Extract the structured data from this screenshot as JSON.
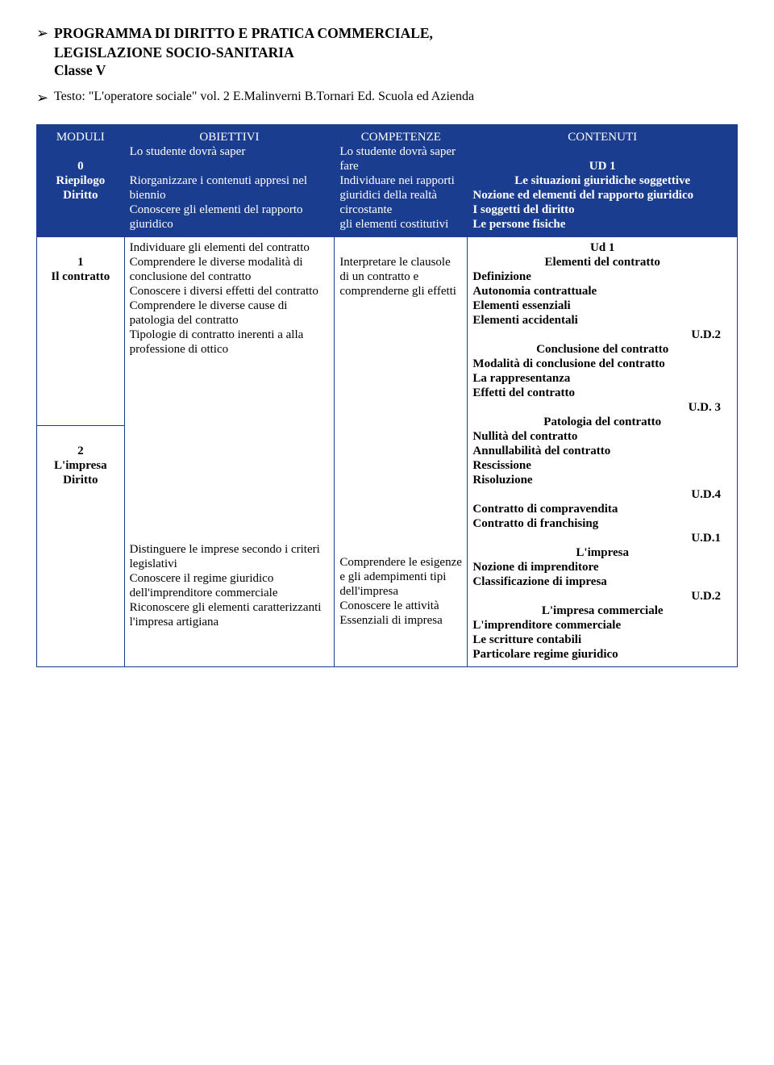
{
  "header": {
    "title_line1": "PROGRAMMA DI  DIRITTO E PRATICA COMMERCIALE,",
    "title_line2": "LEGISLAZIONE SOCIO-SANITARIA",
    "classe": "Classe V",
    "testo": "Testo: \"L'operatore sociale\" vol. 2 E.Malinverni B.Tornari Ed. Scuola ed Azienda"
  },
  "table_header": {
    "moduli": "MODULI",
    "obiettivi": "OBIETTIVI",
    "obiettivi_sub": "Lo studente dovrà saper",
    "competenze": "COMPETENZE",
    "competenze_sub": "Lo studente dovrà saper fare",
    "contenuti": "CONTENUTI"
  },
  "rows": {
    "r0": {
      "mod_num": "0",
      "mod_label1": "Riepilogo",
      "mod_label2": "Diritto",
      "obj1": "Riorganizzare i contenuti appresi  nel biennio",
      "obj2": "Conoscere gli elementi del rapporto giuridico",
      "comp": "Individuare nei rapporti giuridici della realtà circostante",
      "comp2": "gli elementi costitutivi",
      "c_ud": "UD 1",
      "c_t1": "Le situazioni giuridiche soggettive",
      "c_l1": "Nozione ed elementi del rapporto giuridico",
      "c_l2": "I soggetti del diritto",
      "c_l3": "Le persone fisiche"
    },
    "r1": {
      "mod_num": "1",
      "mod_label1": "Il contratto",
      "obj1": "Individuare gli elementi del contratto",
      "obj2": "Comprendere le diverse modalità di conclusione del contratto",
      "obj3": "Conoscere i diversi effetti del contratto",
      "obj4": "Comprendere le diverse cause di patologia del contratto",
      "obj5": "Tipologie di contratto inerenti a  alla professione di ottico",
      "comp": "Interpretare le clausole di un contratto e comprenderne gli effetti",
      "c_ud1": "Ud 1",
      "c_t1": "Elementi del contratto",
      "c_l1": "Definizione",
      "c_l2": "Autonomia contrattuale",
      "c_l3": "Elementi essenziali",
      "c_l4": "Elementi accidentali",
      "c_ud2": "U.D.2",
      "c_t2": "Conclusione del contratto",
      "c_l5": "Modalità di conclusione del contratto",
      "c_l6": "La rappresentanza",
      "c_l7": "Effetti del contratto",
      "c_ud3": "U.D. 3",
      "c_t3": "Patologia del contratto",
      "c_l8": "Nullità del contratto",
      "c_l9": "Annullabilità del contratto",
      "c_l10": "Rescissione",
      "c_l11": "Risoluzione",
      "c_ud4": "U.D.4",
      "c_l12": "Contratto di compravendita",
      "c_l13": "Contratto di franchising"
    },
    "r2": {
      "mod_num": "2",
      "mod_label1": "L'impresa",
      "mod_label2": "Diritto",
      "obj1": "Distinguere le imprese secondo i criteri legislativi",
      "obj2": "Conoscere il regime giuridico dell'imprenditore commerciale",
      "obj3": "Riconoscere gli elementi caratterizzanti l'impresa artigiana",
      "comp1": "Comprendere le esigenze e gli adempimenti tipi dell'impresa",
      "comp2": "Conoscere le attività",
      "comp3": "Essenziali di impresa",
      "c_ud1": "U.D.1",
      "c_t1": "L'impresa",
      "c_l1": "Nozione di imprenditore",
      "c_l2": "Classificazione di impresa",
      "c_ud2": "U.D.2",
      "c_t2": "L'impresa commerciale",
      "c_l3": "L'imprenditore commerciale",
      "c_l4": "Le scritture contabili",
      "c_l5": "Particolare regime giuridico"
    }
  }
}
